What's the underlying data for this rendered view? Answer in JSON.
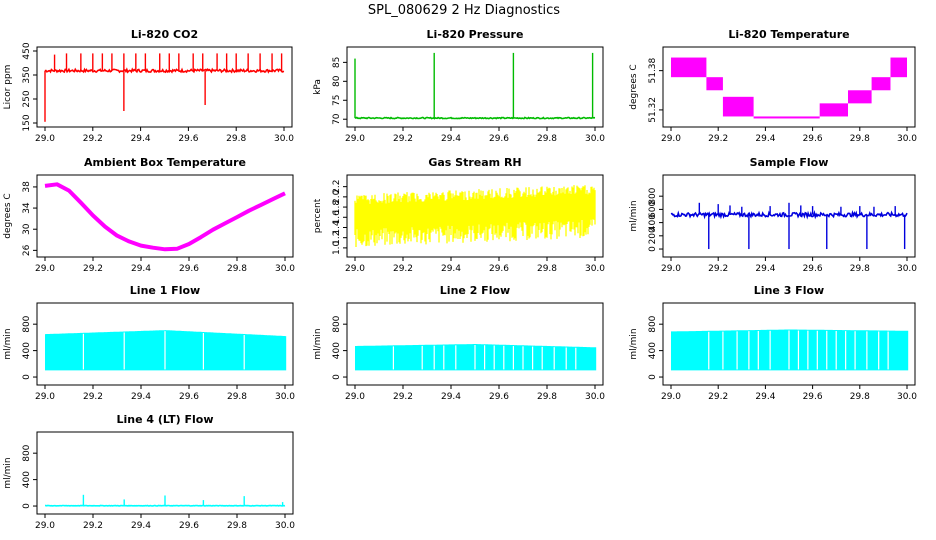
{
  "figure_title": "SPL_080629  2 Hz Diagnostics",
  "chart_data": [
    {
      "type": "line",
      "title": "Li-820 CO2",
      "ylabel": "Licor ppm",
      "color": "#ff0000",
      "xlim": [
        29.0,
        30.0
      ],
      "ylim": [
        150,
        450
      ],
      "xticks": [
        29.0,
        29.2,
        29.4,
        29.6,
        29.8,
        30.0
      ],
      "xtick_labels": [
        "29.0",
        "29.2",
        "29.4",
        "29.6",
        "29.8",
        "30.0"
      ],
      "yticks": [
        150,
        250,
        350,
        450
      ],
      "series": [
        {
          "kind": "baseline_spikes",
          "level": [
            [
              29.0,
              368
            ],
            [
              30.0,
              368
            ]
          ],
          "noise": 12,
          "spikes": [
            [
              29.0,
              155
            ],
            [
              29.04,
              435
            ],
            [
              29.09,
              440
            ],
            [
              29.15,
              440
            ],
            [
              29.2,
              440
            ],
            [
              29.24,
              440
            ],
            [
              29.28,
              440
            ],
            [
              29.33,
              200
            ],
            [
              29.33,
              440
            ],
            [
              29.38,
              440
            ],
            [
              29.42,
              440
            ],
            [
              29.48,
              440
            ],
            [
              29.52,
              440
            ],
            [
              29.56,
              440
            ],
            [
              29.62,
              440
            ],
            [
              29.66,
              440
            ],
            [
              29.67,
              225
            ],
            [
              29.72,
              440
            ],
            [
              29.76,
              440
            ],
            [
              29.8,
              440
            ],
            [
              29.85,
              440
            ],
            [
              29.9,
              440
            ],
            [
              29.95,
              440
            ],
            [
              29.99,
              440
            ]
          ]
        }
      ]
    },
    {
      "type": "line",
      "title": "Li-820 Pressure",
      "ylabel": "kPa",
      "color": "#00bb00",
      "xlim": [
        29.0,
        30.0
      ],
      "ylim": [
        69,
        88
      ],
      "xticks": [
        29.0,
        29.2,
        29.4,
        29.6,
        29.8,
        30.0
      ],
      "xtick_labels": [
        "29.0",
        "29.2",
        "29.4",
        "29.6",
        "29.8",
        "30.0"
      ],
      "yticks": [
        70,
        75,
        80,
        85
      ],
      "series": [
        {
          "kind": "baseline_spikes",
          "level": [
            [
              29.0,
              70.3
            ],
            [
              30.0,
              70.3
            ]
          ],
          "noise": 0.3,
          "spikes": [
            [
              29.0,
              86
            ],
            [
              29.33,
              87.5
            ],
            [
              29.66,
              87.5
            ],
            [
              29.99,
              87.5
            ]
          ]
        }
      ]
    },
    {
      "type": "line",
      "title": "Li-820 Temperature",
      "ylabel": "degrees C",
      "color": "#ff00ff",
      "xlim": [
        29.0,
        30.0
      ],
      "ylim": [
        51.3,
        51.41
      ],
      "xticks": [
        29.0,
        29.2,
        29.4,
        29.6,
        29.8,
        30.0
      ],
      "xtick_labels": [
        "29.0",
        "29.2",
        "29.4",
        "29.6",
        "29.8",
        "30.0"
      ],
      "yticks": [
        51.32,
        51.38
      ],
      "ytick_labels": [
        "51.32",
        "51.38"
      ],
      "series": [
        {
          "kind": "step_band",
          "steps": [
            [
              29.0,
              29.15,
              51.37,
              51.4
            ],
            [
              29.15,
              29.22,
              51.35,
              51.37
            ],
            [
              29.22,
              29.35,
              51.31,
              51.34
            ],
            [
              29.35,
              29.63,
              51.31,
              51.31
            ],
            [
              29.63,
              29.75,
              51.31,
              51.33
            ],
            [
              29.75,
              29.85,
              51.33,
              51.35
            ],
            [
              29.85,
              29.93,
              51.35,
              51.37
            ],
            [
              29.93,
              30.0,
              51.37,
              51.4
            ]
          ]
        }
      ]
    },
    {
      "type": "line",
      "title": "Ambient Box Temperature",
      "ylabel": "degrees C",
      "color": "#ff00ff",
      "xlim": [
        29.0,
        30.0
      ],
      "ylim": [
        25.5,
        39.5
      ],
      "xticks": [
        29.0,
        29.2,
        29.4,
        29.6,
        29.8,
        30.0
      ],
      "xtick_labels": [
        "29.0",
        "29.2",
        "29.4",
        "29.6",
        "29.8",
        "30.0"
      ],
      "yticks": [
        26,
        30,
        34,
        38
      ],
      "series": [
        {
          "kind": "thick_line",
          "points": [
            [
              29.0,
              38.2
            ],
            [
              29.05,
              38.5
            ],
            [
              29.1,
              37.3
            ],
            [
              29.15,
              35.0
            ],
            [
              29.2,
              32.6
            ],
            [
              29.25,
              30.5
            ],
            [
              29.3,
              28.8
            ],
            [
              29.35,
              27.7
            ],
            [
              29.4,
              26.9
            ],
            [
              29.45,
              26.5
            ],
            [
              29.5,
              26.2
            ],
            [
              29.55,
              26.3
            ],
            [
              29.6,
              27.2
            ],
            [
              29.65,
              28.5
            ],
            [
              29.7,
              29.9
            ],
            [
              29.75,
              31.1
            ],
            [
              29.8,
              32.3
            ],
            [
              29.85,
              33.5
            ],
            [
              29.9,
              34.6
            ],
            [
              29.95,
              35.7
            ],
            [
              30.0,
              36.8
            ]
          ]
        }
      ]
    },
    {
      "type": "line",
      "title": "Gas Stream RH",
      "ylabel": "percent",
      "color": "#ffff00",
      "xlim": [
        29.0,
        30.0
      ],
      "ylim": [
        0.9,
        2.35
      ],
      "xticks": [
        29.0,
        29.2,
        29.4,
        29.6,
        29.8,
        30.0
      ],
      "xtick_labels": [
        "29.0",
        "29.2",
        "29.4",
        "29.6",
        "29.8",
        "30.0"
      ],
      "yticks": [
        1.0,
        1.2,
        1.4,
        1.6,
        1.8,
        2.0,
        2.2
      ],
      "ytick_labels": [
        "1.0",
        "1.2",
        "1.4",
        "1.6",
        "1.8",
        "2.0",
        "2.2"
      ],
      "series": [
        {
          "kind": "dense_band",
          "lower": [
            [
              29.0,
              1.0
            ],
            [
              30.0,
              1.2
            ]
          ],
          "upper": [
            [
              29.0,
              2.05
            ],
            [
              30.0,
              2.25
            ]
          ]
        }
      ]
    },
    {
      "type": "line",
      "title": "Sample Flow",
      "ylabel": "ml/min",
      "color": "#0000dd",
      "xlim": [
        29.0,
        30.0
      ],
      "ylim": [
        -60,
        1060
      ],
      "xticks": [
        29.0,
        29.2,
        29.4,
        29.6,
        29.8,
        30.0
      ],
      "xtick_labels": [
        "29.0",
        "29.2",
        "29.4",
        "29.6",
        "29.8",
        "30.0"
      ],
      "yticks": [
        0,
        200,
        400,
        600,
        800
      ],
      "series": [
        {
          "kind": "baseline_spikes",
          "level": [
            [
              29.0,
              520
            ],
            [
              30.0,
              520
            ]
          ],
          "noise": 60,
          "spikes": [
            [
              29.16,
              0
            ],
            [
              29.33,
              0
            ],
            [
              29.5,
              0
            ],
            [
              29.66,
              0
            ],
            [
              29.83,
              0
            ],
            [
              29.99,
              0
            ],
            [
              29.12,
              700
            ],
            [
              29.2,
              680
            ],
            [
              29.25,
              660
            ],
            [
              29.3,
              640
            ],
            [
              29.42,
              650
            ],
            [
              29.5,
              700
            ],
            [
              29.55,
              660
            ],
            [
              29.6,
              650
            ],
            [
              29.72,
              640
            ],
            [
              29.8,
              650
            ],
            [
              29.86,
              640
            ],
            [
              29.95,
              650
            ]
          ]
        }
      ]
    },
    {
      "type": "line",
      "title": "Line 1 Flow",
      "ylabel": "ml/min",
      "color": "#00ffff",
      "xlim": [
        29.0,
        30.0
      ],
      "ylim": [
        -60,
        1060
      ],
      "xticks": [
        29.0,
        29.2,
        29.4,
        29.6,
        29.8,
        30.0
      ],
      "xtick_labels": [
        "29.0",
        "29.2",
        "29.4",
        "29.6",
        "29.8",
        "30.0"
      ],
      "yticks": [
        0,
        400,
        800
      ],
      "series": [
        {
          "kind": "block_band",
          "lower": 100,
          "upper": [
            [
              29.0,
              650
            ],
            [
              29.5,
              710
            ],
            [
              30.0,
              620
            ]
          ],
          "gaps": [
            29.16,
            29.33,
            29.5,
            29.66,
            29.83
          ]
        }
      ]
    },
    {
      "type": "line",
      "title": "Line 2 Flow",
      "ylabel": "ml/min",
      "color": "#00ffff",
      "xlim": [
        29.0,
        30.0
      ],
      "ylim": [
        -60,
        1060
      ],
      "xticks": [
        29.0,
        29.2,
        29.4,
        29.6,
        29.8,
        30.0
      ],
      "xtick_labels": [
        "29.0",
        "29.2",
        "29.4",
        "29.6",
        "29.8",
        "30.0"
      ],
      "yticks": [
        0,
        400,
        800
      ],
      "series": [
        {
          "kind": "block_band",
          "lower": 100,
          "upper": [
            [
              29.0,
              470
            ],
            [
              29.5,
              500
            ],
            [
              30.0,
              450
            ]
          ],
          "gaps": [
            29.16,
            29.28,
            29.33,
            29.37,
            29.42,
            29.5,
            29.54,
            29.58,
            29.62,
            29.66,
            29.7,
            29.74,
            29.78,
            29.83,
            29.88,
            29.92
          ]
        }
      ]
    },
    {
      "type": "line",
      "title": "Line 3 Flow",
      "ylabel": "ml/min",
      "color": "#00ffff",
      "xlim": [
        29.0,
        30.0
      ],
      "ylim": [
        -60,
        1060
      ],
      "xticks": [
        29.0,
        29.2,
        29.4,
        29.6,
        29.8,
        30.0
      ],
      "xtick_labels": [
        "29.0",
        "29.2",
        "29.4",
        "29.6",
        "29.8",
        "30.0"
      ],
      "yticks": [
        0,
        400,
        800
      ],
      "series": [
        {
          "kind": "block_band",
          "lower": 100,
          "upper": [
            [
              29.0,
              690
            ],
            [
              29.5,
              720
            ],
            [
              30.0,
              700
            ]
          ],
          "gaps": [
            29.16,
            29.22,
            29.28,
            29.33,
            29.37,
            29.42,
            29.5,
            29.54,
            29.58,
            29.62,
            29.66,
            29.7,
            29.74,
            29.78,
            29.83,
            29.88,
            29.92
          ]
        }
      ]
    },
    {
      "type": "line",
      "title": "Line 4 (LT) Flow",
      "ylabel": "ml/min",
      "color": "#00ffff",
      "xlim": [
        29.0,
        30.0
      ],
      "ylim": [
        -60,
        1060
      ],
      "xticks": [
        29.0,
        29.2,
        29.4,
        29.6,
        29.8,
        30.0
      ],
      "xtick_labels": [
        "29.0",
        "29.2",
        "29.4",
        "29.6",
        "29.8",
        "30.0"
      ],
      "yticks": [
        0,
        400,
        800
      ],
      "series": [
        {
          "kind": "baseline_spikes",
          "level": [
            [
              29.0,
              5
            ],
            [
              30.0,
              5
            ]
          ],
          "noise": 6,
          "spikes": [
            [
              29.16,
              170
            ],
            [
              29.33,
              100
            ],
            [
              29.5,
              160
            ],
            [
              29.66,
              90
            ],
            [
              29.83,
              150
            ],
            [
              29.99,
              60
            ]
          ]
        }
      ]
    }
  ]
}
